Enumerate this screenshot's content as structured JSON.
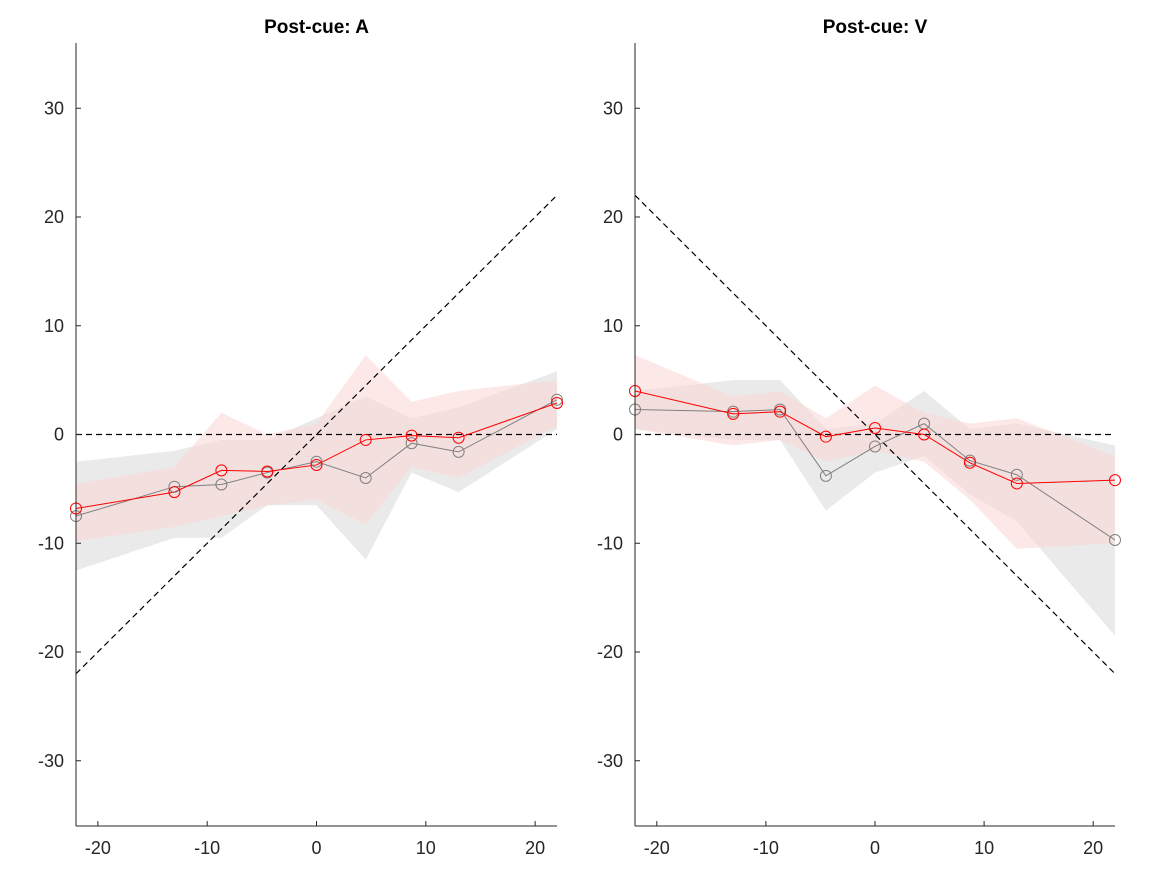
{
  "chart_data": [
    {
      "type": "line",
      "title": "Post-cue: A",
      "xlim": [
        -22,
        22
      ],
      "ylim": [
        -36,
        36
      ],
      "xticks": [
        -20,
        -10,
        0,
        10,
        20
      ],
      "xtick_labels": [
        "-20",
        "-10",
        "0",
        "10",
        "20"
      ],
      "yticks": [
        -30,
        -20,
        -10,
        0,
        10,
        20,
        30
      ],
      "ytick_labels": [
        "-30",
        "-20",
        "-10",
        "0",
        "10",
        "20",
        "30"
      ],
      "grid": false,
      "reference_lines": [
        {
          "style": "dashed",
          "color": "#000000",
          "points": [
            [
              -22,
              0
            ],
            [
              22,
              0
            ]
          ]
        },
        {
          "style": "dashed",
          "color": "#000000",
          "points": [
            [
              -22,
              -22
            ],
            [
              22,
              22
            ]
          ]
        }
      ],
      "series": [
        {
          "color": "#808080",
          "band_color": "#d9d9d9",
          "x": [
            -22,
            -13,
            -8.7,
            -4.5,
            0,
            4.5,
            8.7,
            13,
            22
          ],
          "y": [
            -7.5,
            -4.8,
            -4.6,
            -3.5,
            -2.5,
            -4.0,
            -0.8,
            -1.6,
            3.2
          ],
          "band_upper": [
            -2.5,
            -1.5,
            -0.5,
            -0.5,
            1.5,
            3.5,
            1.5,
            2.5,
            5.8
          ],
          "band_lower": [
            -12.5,
            -9.5,
            -9.5,
            -6.5,
            -6.5,
            -11.5,
            -3.5,
            -5.3,
            0.5
          ]
        },
        {
          "color": "#ff0000",
          "band_color": "#fbd5d5",
          "x": [
            -22,
            -13,
            -8.7,
            -4.5,
            0,
            4.5,
            8.7,
            13,
            22
          ],
          "y": [
            -6.8,
            -5.3,
            -3.3,
            -3.4,
            -2.8,
            -0.5,
            -0.1,
            -0.3,
            2.9
          ],
          "band_upper": [
            -4.5,
            -3.0,
            2.0,
            0.0,
            1.0,
            7.3,
            3.0,
            4.0,
            5.0
          ],
          "band_lower": [
            -9.8,
            -8.5,
            -7.5,
            -6.5,
            -6.0,
            -8.3,
            -3.0,
            -4.0,
            0.8
          ]
        }
      ]
    },
    {
      "type": "line",
      "title": "Post-cue: V",
      "xlim": [
        -22,
        22
      ],
      "ylim": [
        -36,
        36
      ],
      "xticks": [
        -20,
        -10,
        0,
        10,
        20
      ],
      "xtick_labels": [
        "-20",
        "-10",
        "0",
        "10",
        "20"
      ],
      "yticks": [
        -30,
        -20,
        -10,
        0,
        10,
        20,
        30
      ],
      "ytick_labels": [
        "-30",
        "-20",
        "-10",
        "0",
        "10",
        "20",
        "30"
      ],
      "grid": false,
      "reference_lines": [
        {
          "style": "dashed",
          "color": "#000000",
          "points": [
            [
              -22,
              0
            ],
            [
              22,
              0
            ]
          ]
        },
        {
          "style": "dashed",
          "color": "#000000",
          "points": [
            [
              -22,
              22
            ],
            [
              22,
              -22
            ]
          ]
        }
      ],
      "series": [
        {
          "color": "#808080",
          "band_color": "#d9d9d9",
          "x": [
            -22,
            -13,
            -8.7,
            -4.5,
            0,
            4.5,
            8.7,
            13,
            22
          ],
          "y": [
            2.3,
            2.1,
            2.3,
            -3.8,
            -1.1,
            1.0,
            -2.4,
            -3.7,
            -9.7
          ],
          "band_upper": [
            4.0,
            5.0,
            5.0,
            0.5,
            1.0,
            4.0,
            0.5,
            1.0,
            -1.0
          ],
          "band_lower": [
            0.5,
            -0.5,
            -0.5,
            -7.0,
            -3.5,
            -2.0,
            -5.5,
            -8.0,
            -18.5
          ]
        },
        {
          "color": "#ff0000",
          "band_color": "#fbd5d5",
          "x": [
            -22,
            -13,
            -8.7,
            -4.5,
            0,
            4.5,
            8.7,
            13,
            22
          ],
          "y": [
            4.0,
            1.9,
            2.1,
            -0.2,
            0.6,
            0.0,
            -2.6,
            -4.5,
            -4.2
          ],
          "band_upper": [
            7.3,
            3.5,
            4.0,
            1.5,
            4.5,
            2.0,
            1.0,
            1.5,
            -2.0
          ],
          "band_lower": [
            0.5,
            -1.0,
            -0.5,
            -2.5,
            -1.5,
            -2.5,
            -6.0,
            -10.5,
            -10.0
          ]
        }
      ]
    }
  ]
}
